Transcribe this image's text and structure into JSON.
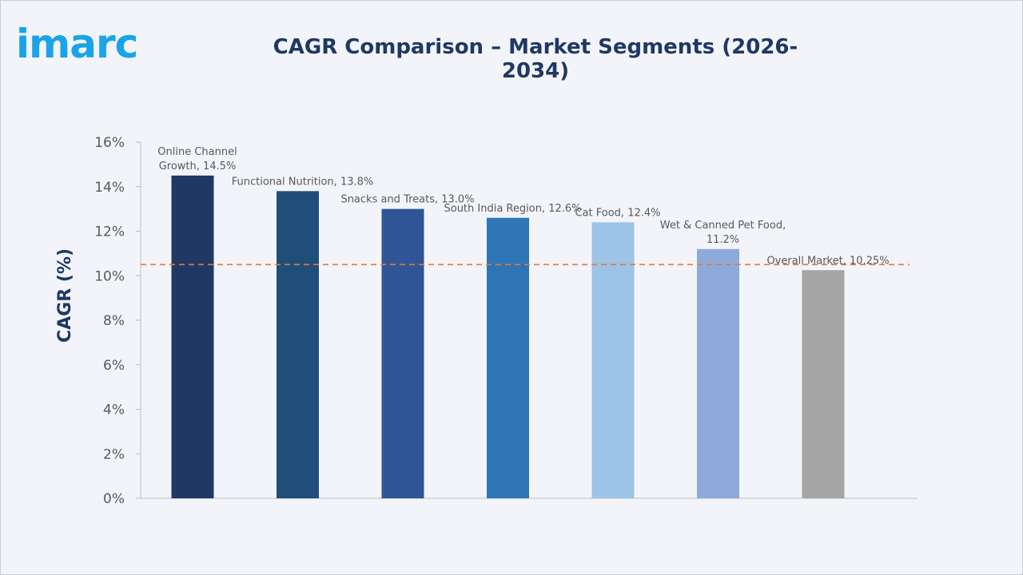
{
  "logo": {
    "text": "imarc"
  },
  "chart_data": {
    "type": "bar",
    "title": "CAGR Comparison – Market Segments (2026-2034)",
    "ylabel": "CAGR (%)",
    "xlabel": "",
    "ylim": [
      0,
      16
    ],
    "yticks": [
      "0%",
      "2%",
      "4%",
      "6%",
      "8%",
      "10%",
      "12%",
      "14%",
      "16%"
    ],
    "grid": false,
    "reference_line": {
      "value": 10.25,
      "style": "dashed",
      "color": "#e07b39"
    },
    "bars": [
      {
        "label_lines": [
          "Online Channel",
          "Growth, 14.5%"
        ],
        "value": 14.5,
        "color": "#203864"
      },
      {
        "label_lines": [
          "Functional Nutrition, 13.8%"
        ],
        "value": 13.8,
        "color": "#1f4e79"
      },
      {
        "label_lines": [
          "Snacks and Treats, 13.0%"
        ],
        "value": 13.0,
        "color": "#2f5597"
      },
      {
        "label_lines": [
          "South India Region, 12.6%"
        ],
        "value": 12.6,
        "color": "#2e75b6"
      },
      {
        "label_lines": [
          "Cat Food, 12.4%"
        ],
        "value": 12.4,
        "color": "#9dc3e6"
      },
      {
        "label_lines": [
          "Wet & Canned Pet Food,",
          "11.2%"
        ],
        "value": 11.2,
        "color": "#8eaadb"
      },
      {
        "label_lines": [
          "Overall Market, 10.25%"
        ],
        "value": 10.25,
        "color": "#a5a5a5"
      }
    ]
  }
}
